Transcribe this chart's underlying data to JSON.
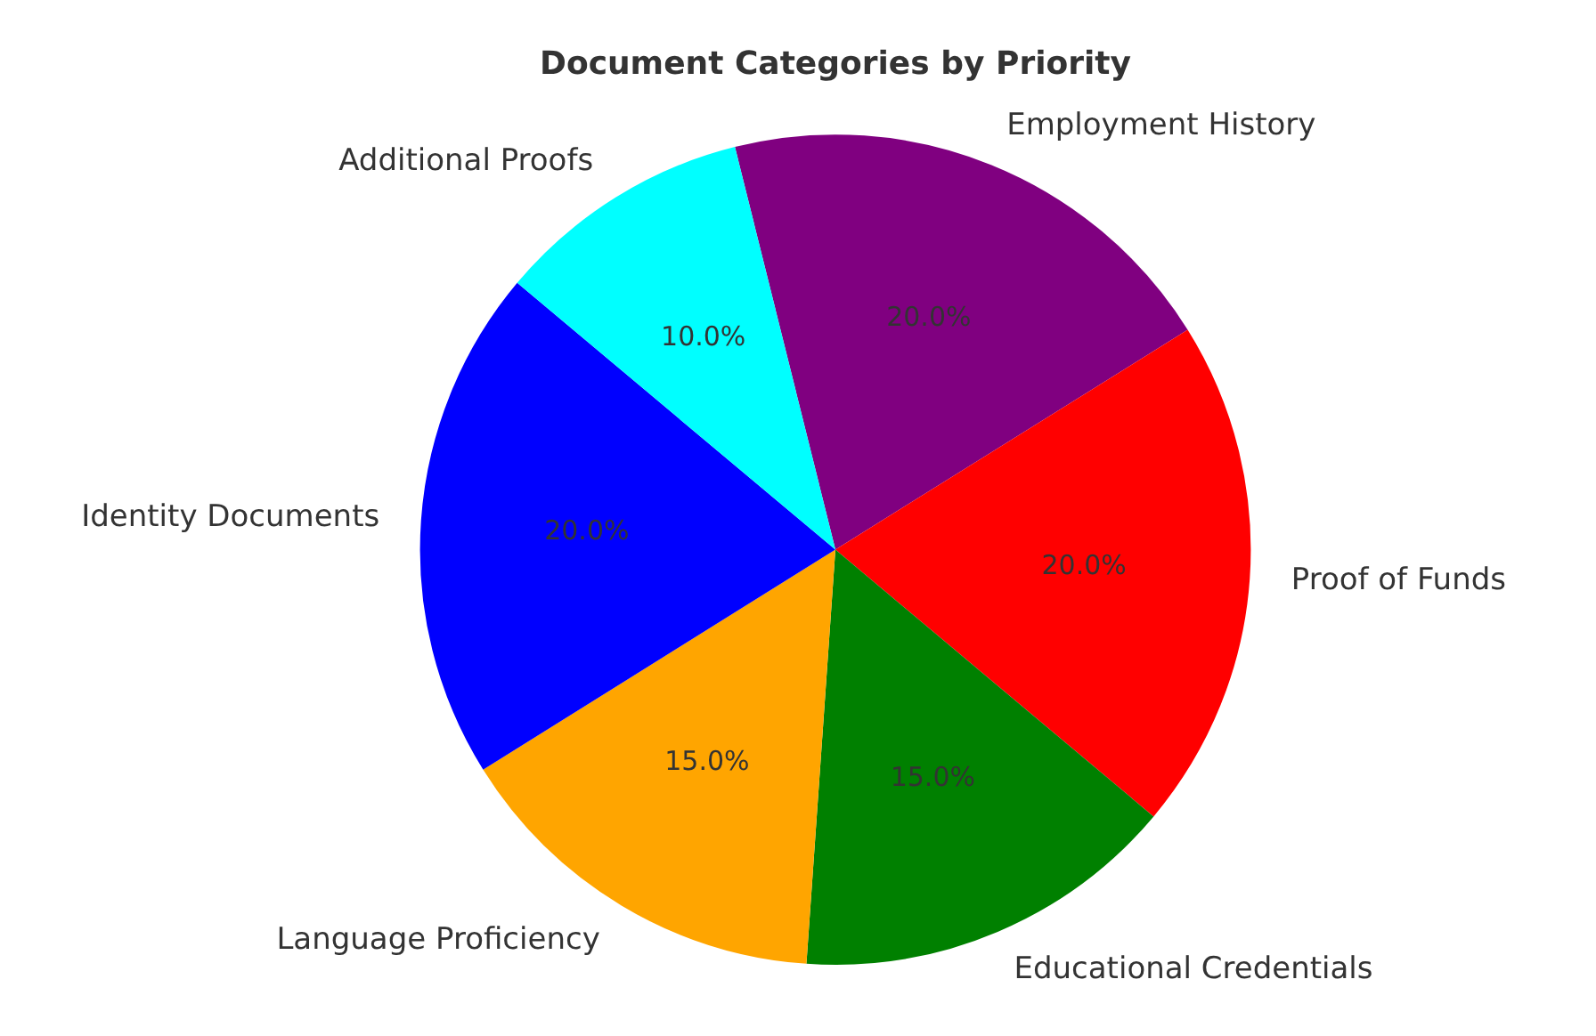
{
  "chart_data": {
    "type": "pie",
    "title": "Document Categories by Priority",
    "categories": [
      "Employment History",
      "Proof of Funds",
      "Educational Credentials",
      "Language Proficiency",
      "Identity Documents",
      "Additional Proofs"
    ],
    "values": [
      20,
      20,
      15,
      15,
      20,
      10
    ],
    "colors": [
      "#800080",
      "#ff0000",
      "#008000",
      "#ffa500",
      "#0000ff",
      "#00ffff"
    ],
    "value_labels": [
      "20.0%",
      "20.0%",
      "15.0%",
      "15.0%",
      "20.0%",
      "10.0%"
    ]
  }
}
